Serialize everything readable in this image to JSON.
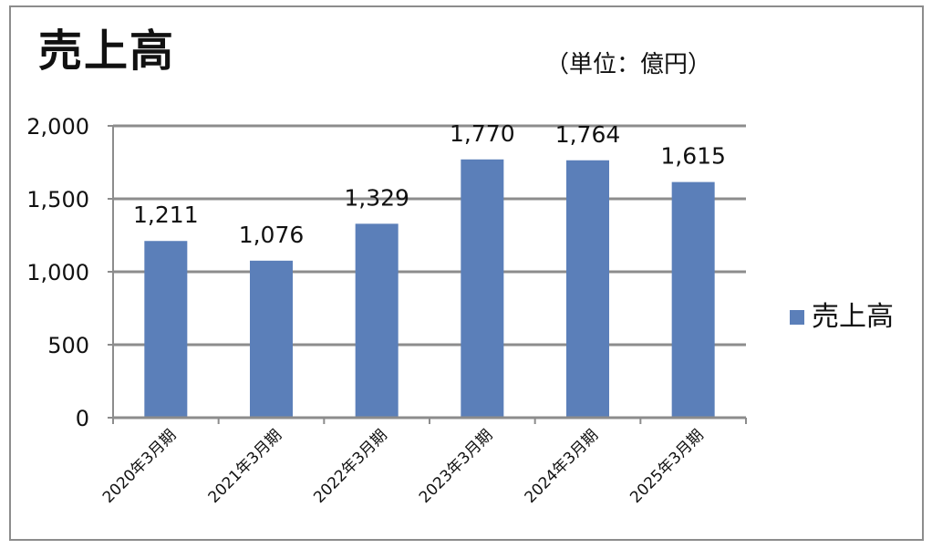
{
  "chart_data": {
    "type": "bar",
    "title": "売上高",
    "unit_note": "（単位：億円）",
    "categories": [
      "2020年3月期",
      "2021年3月期",
      "2022年3月期",
      "2023年3月期",
      "2024年3月期",
      "2025年3月期"
    ],
    "series": [
      {
        "name": "売上高",
        "values": [
          1211,
          1076,
          1329,
          1770,
          1764,
          1615
        ]
      }
    ],
    "data_labels": [
      "1,211",
      "1,076",
      "1,329",
      "1,770",
      "1,764",
      "1,615"
    ],
    "ylim": [
      0,
      2000
    ],
    "yticks": [
      0,
      500,
      1000,
      1500,
      2000
    ],
    "ytick_labels": [
      "0",
      "500",
      "1,000",
      "1,500",
      "2,000"
    ],
    "grid": true,
    "legend_position": "right",
    "bar_color": "#5b7fb9",
    "grid_color": "#8c8c8c"
  }
}
